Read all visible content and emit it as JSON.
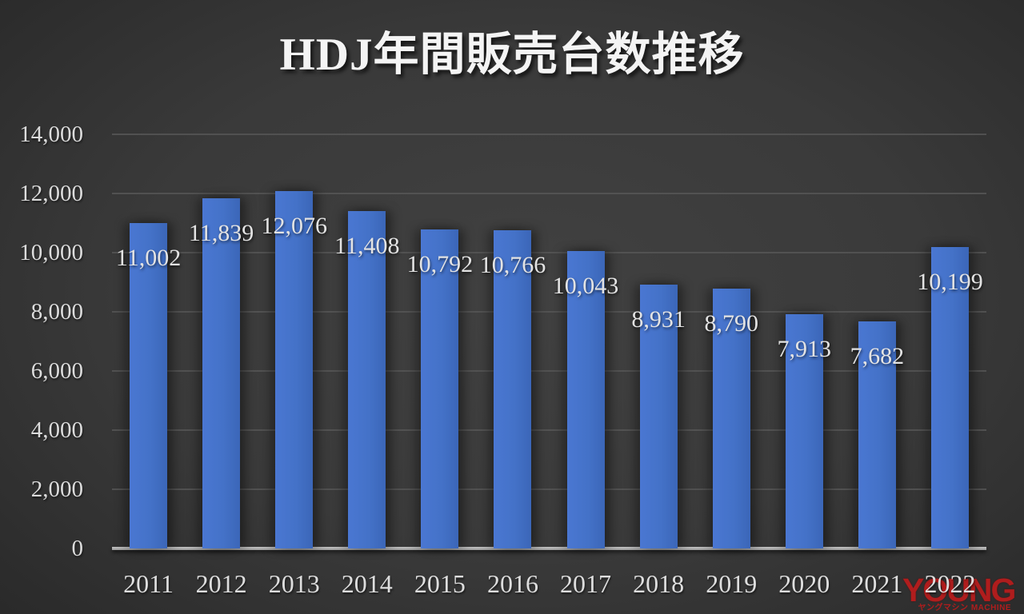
{
  "title": "HDJ年間販売台数推移",
  "watermark": {
    "line1": "YOUNG",
    "line2": "ヤングマシン MACHINE",
    "color": "#bb1c1c"
  },
  "chart_data": {
    "type": "bar",
    "title": "HDJ年間販売台数推移",
    "categories": [
      "2011",
      "2012",
      "2013",
      "2014",
      "2015",
      "2016",
      "2017",
      "2018",
      "2019",
      "2020",
      "2021",
      "2022"
    ],
    "values": [
      11002,
      11839,
      12076,
      11408,
      10792,
      10766,
      10043,
      8931,
      8790,
      7913,
      7682,
      10199
    ],
    "value_labels": [
      "11,002",
      "11,839",
      "12,076",
      "11,408",
      "10,792",
      "10,766",
      "10,043",
      "8,931",
      "8,790",
      "7,913",
      "7,682",
      "10,199"
    ],
    "xlabel": "",
    "ylabel": "",
    "ylim": [
      0,
      14000
    ],
    "ytick_step": 2000,
    "ytick_labels": [
      "0",
      "2,000",
      "4,000",
      "6,000",
      "8,000",
      "10,000",
      "12,000",
      "14,000"
    ],
    "grid": true,
    "legend": false,
    "bar_color": "#4472c8",
    "background_color": "#3a3a3a",
    "text_color": "#e3e3e3"
  }
}
